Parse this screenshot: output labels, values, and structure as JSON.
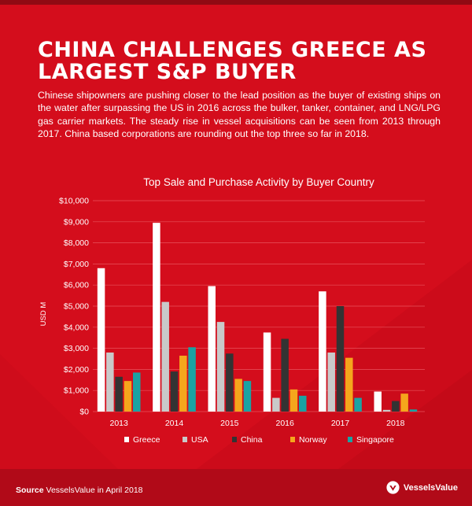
{
  "header": {
    "title": "CHINA CHALLENGES GREECE AS LARGEST S&P BUYER",
    "body": "Chinese shipowners are pushing closer to the lead position as the buyer of existing ships on the water after surpassing the US in 2016 across the bulker, tanker, container, and LNG/LPG gas carrier markets.  The steady rise in vessel acquisitions can be seen from 2013 through 2017. China based corporations are rounding out the top three so far in 2018."
  },
  "chart_data": {
    "type": "bar",
    "title": "Top Sale and Purchase Activity by Buyer Country",
    "xlabel": "",
    "ylabel": "USD M",
    "categories": [
      "2013",
      "2014",
      "2015",
      "2016",
      "2017",
      "2018"
    ],
    "ylim": [
      0,
      10000
    ],
    "yticks": [
      "$0",
      "$1,000",
      "$2,000",
      "$3,000",
      "$4,000",
      "$5,000",
      "$6,000",
      "$7,000",
      "$8,000",
      "$9,000",
      "$10,000"
    ],
    "grid": true,
    "legend_position": "bottom",
    "series": [
      {
        "name": "Greece",
        "color": "#ffffff",
        "values": [
          6800,
          8950,
          5950,
          3750,
          5700,
          950
        ]
      },
      {
        "name": "USA",
        "color": "#c9c9c9",
        "values": [
          2800,
          5200,
          4250,
          650,
          2800,
          80
        ]
      },
      {
        "name": "China",
        "color": "#333333",
        "values": [
          1650,
          1900,
          2750,
          3450,
          5000,
          500
        ]
      },
      {
        "name": "Norway",
        "color": "#f5a61c",
        "values": [
          1450,
          2650,
          1550,
          1050,
          2550,
          850
        ]
      },
      {
        "name": "Singapore",
        "color": "#1aa3a3",
        "values": [
          1850,
          3050,
          1450,
          750,
          650,
          100
        ]
      }
    ]
  },
  "footer": {
    "source_label": "Source",
    "source_text": "VesselsValue in April 2018",
    "brand": "VesselsValue"
  }
}
